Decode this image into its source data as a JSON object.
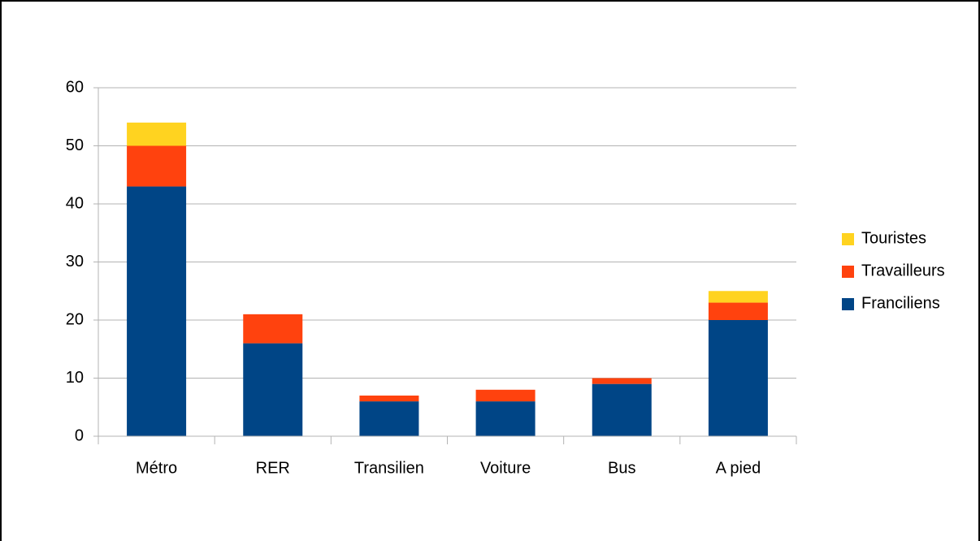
{
  "chart_data": {
    "type": "bar",
    "stacked": true,
    "categories": [
      "Métro",
      "RER",
      "Transilien",
      "Voiture",
      "Bus",
      "A pied"
    ],
    "series": [
      {
        "name": "Franciliens",
        "color": "#004586",
        "values": [
          43,
          16,
          6,
          6,
          9,
          20
        ]
      },
      {
        "name": "Travailleurs",
        "color": "#ff420e",
        "values": [
          7,
          5,
          1,
          2,
          1,
          3
        ]
      },
      {
        "name": "Touristes",
        "color": "#ffd320",
        "values": [
          4,
          0,
          0,
          0,
          0,
          2
        ]
      }
    ],
    "ylim": [
      0,
      60
    ],
    "yticks": [
      0,
      10,
      20,
      30,
      40,
      50,
      60
    ],
    "grid": true,
    "legend": "right"
  }
}
